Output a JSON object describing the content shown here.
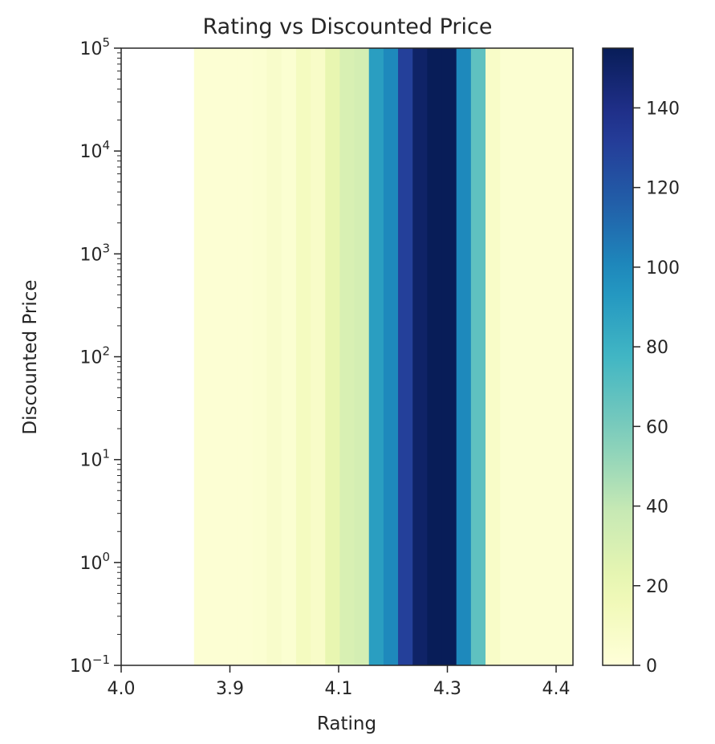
{
  "chart_data": {
    "type": "heatmap",
    "title": "Rating vs Discounted Price",
    "xlabel": "Rating",
    "ylabel": "Discounted Price",
    "x_tick_labels": [
      "4.0",
      "3.9",
      "4.1",
      "4.3",
      "4.4"
    ],
    "y_scale": "log",
    "y_range": [
      0.1,
      100000
    ],
    "y_ticks": [
      {
        "base": "10",
        "exp": "−1",
        "value": 0.1
      },
      {
        "base": "10",
        "exp": "0",
        "value": 1
      },
      {
        "base": "10",
        "exp": "1",
        "value": 10
      },
      {
        "base": "10",
        "exp": "2",
        "value": 100
      },
      {
        "base": "10",
        "exp": "3",
        "value": 1000
      },
      {
        "base": "10",
        "exp": "4",
        "value": 10000
      },
      {
        "base": "10",
        "exp": "5",
        "value": 100000
      }
    ],
    "columns": [
      {
        "count": 0
      },
      {
        "count": 0
      },
      {
        "count": 0
      },
      {
        "count": 0
      },
      {
        "count": 0
      },
      {
        "count": 3
      },
      {
        "count": 3
      },
      {
        "count": 3
      },
      {
        "count": 3
      },
      {
        "count": 4
      },
      {
        "count": 7
      },
      {
        "count": 4
      },
      {
        "count": 12
      },
      {
        "count": 8
      },
      {
        "count": 22
      },
      {
        "count": 30
      },
      {
        "count": 32
      },
      {
        "count": 90
      },
      {
        "count": 100
      },
      {
        "count": 130
      },
      {
        "count": 150
      },
      {
        "count": 155
      },
      {
        "count": 155
      },
      {
        "count": 100
      },
      {
        "count": 68
      },
      {
        "count": 8
      },
      {
        "count": 4
      },
      {
        "count": 4
      },
      {
        "count": 4
      },
      {
        "count": 4
      },
      {
        "count": 4
      }
    ],
    "colorbar": {
      "colormap": "YlGnBu",
      "range": [
        0,
        155
      ],
      "ticks": [
        0,
        20,
        40,
        60,
        80,
        100,
        120,
        140
      ]
    },
    "grid": false,
    "legend": "none"
  }
}
